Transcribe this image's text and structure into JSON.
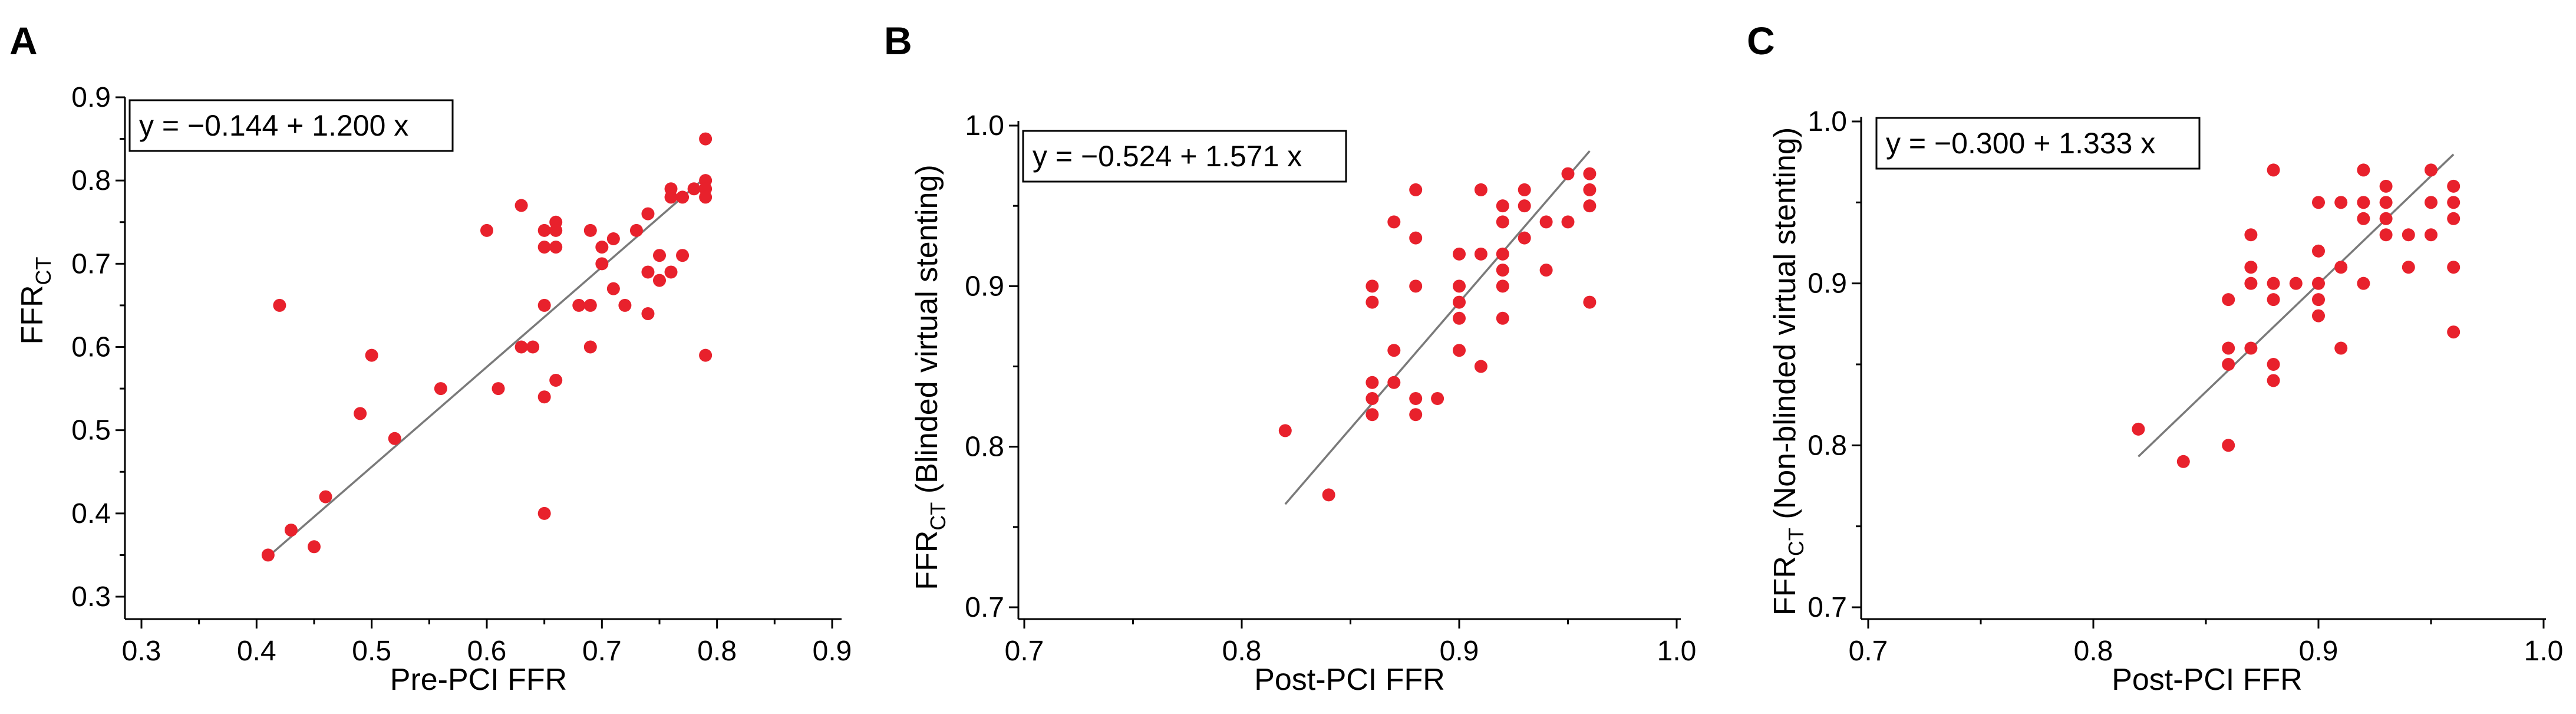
{
  "chart_data": [
    {
      "type": "scatter",
      "panel": "A",
      "equation": "y = −0.144 + 1.200 x",
      "xlabel": "Pre-PCI FFR",
      "ylabel_main": "FFR",
      "ylabel_sub": "CT",
      "ylabel_rest": "",
      "xlim": [
        0.3,
        0.9
      ],
      "ylim": [
        0.3,
        0.9
      ],
      "xticks": [
        "0.3",
        "0.4",
        "0.5",
        "0.6",
        "0.7",
        "0.8",
        "0.9"
      ],
      "yticks": [
        "0.3",
        "0.4",
        "0.5",
        "0.6",
        "0.7",
        "0.8",
        "0.9"
      ],
      "fit": {
        "intercept": -0.144,
        "slope": 1.2,
        "x_range": [
          0.41,
          0.785
        ]
      },
      "points": [
        [
          0.41,
          0.35
        ],
        [
          0.42,
          0.65
        ],
        [
          0.43,
          0.38
        ],
        [
          0.45,
          0.36
        ],
        [
          0.46,
          0.42
        ],
        [
          0.49,
          0.52
        ],
        [
          0.5,
          0.59
        ],
        [
          0.52,
          0.49
        ],
        [
          0.56,
          0.55
        ],
        [
          0.6,
          0.74
        ],
        [
          0.61,
          0.55
        ],
        [
          0.63,
          0.77
        ],
        [
          0.63,
          0.6
        ],
        [
          0.64,
          0.6
        ],
        [
          0.65,
          0.74
        ],
        [
          0.65,
          0.72
        ],
        [
          0.65,
          0.65
        ],
        [
          0.65,
          0.54
        ],
        [
          0.65,
          0.4
        ],
        [
          0.66,
          0.75
        ],
        [
          0.66,
          0.74
        ],
        [
          0.66,
          0.72
        ],
        [
          0.66,
          0.56
        ],
        [
          0.68,
          0.65
        ],
        [
          0.69,
          0.74
        ],
        [
          0.69,
          0.65
        ],
        [
          0.69,
          0.6
        ],
        [
          0.7,
          0.72
        ],
        [
          0.7,
          0.7
        ],
        [
          0.71,
          0.73
        ],
        [
          0.71,
          0.67
        ],
        [
          0.72,
          0.65
        ],
        [
          0.73,
          0.74
        ],
        [
          0.74,
          0.76
        ],
        [
          0.74,
          0.69
        ],
        [
          0.74,
          0.64
        ],
        [
          0.75,
          0.71
        ],
        [
          0.75,
          0.68
        ],
        [
          0.76,
          0.79
        ],
        [
          0.76,
          0.78
        ],
        [
          0.76,
          0.69
        ],
        [
          0.77,
          0.78
        ],
        [
          0.77,
          0.71
        ],
        [
          0.78,
          0.79
        ],
        [
          0.79,
          0.85
        ],
        [
          0.79,
          0.8
        ],
        [
          0.79,
          0.79
        ],
        [
          0.79,
          0.78
        ],
        [
          0.79,
          0.59
        ]
      ]
    },
    {
      "type": "scatter",
      "panel": "B",
      "equation": "y = −0.524 + 1.571 x",
      "xlabel": "Post-PCI FFR",
      "ylabel_main": "FFR",
      "ylabel_sub": "CT",
      "ylabel_rest": " (Blinded virtual stenting)",
      "xlim": [
        0.7,
        1.0
      ],
      "ylim": [
        0.7,
        1.0
      ],
      "xticks": [
        "0.7",
        "0.8",
        "0.9",
        "1.0"
      ],
      "yticks": [
        "0.7",
        "0.8",
        "0.9",
        "1.0"
      ],
      "fit": {
        "intercept": -0.524,
        "slope": 1.571,
        "x_range": [
          0.82,
          0.96
        ]
      },
      "points": [
        [
          0.82,
          0.81
        ],
        [
          0.84,
          0.77
        ],
        [
          0.86,
          0.9
        ],
        [
          0.86,
          0.89
        ],
        [
          0.86,
          0.84
        ],
        [
          0.86,
          0.83
        ],
        [
          0.86,
          0.82
        ],
        [
          0.87,
          0.94
        ],
        [
          0.87,
          0.86
        ],
        [
          0.87,
          0.84
        ],
        [
          0.88,
          0.96
        ],
        [
          0.88,
          0.93
        ],
        [
          0.88,
          0.9
        ],
        [
          0.88,
          0.83
        ],
        [
          0.88,
          0.82
        ],
        [
          0.89,
          0.83
        ],
        [
          0.9,
          0.92
        ],
        [
          0.9,
          0.9
        ],
        [
          0.9,
          0.89
        ],
        [
          0.9,
          0.88
        ],
        [
          0.9,
          0.86
        ],
        [
          0.91,
          0.96
        ],
        [
          0.91,
          0.92
        ],
        [
          0.91,
          0.85
        ],
        [
          0.92,
          0.95
        ],
        [
          0.92,
          0.94
        ],
        [
          0.92,
          0.92
        ],
        [
          0.92,
          0.91
        ],
        [
          0.92,
          0.9
        ],
        [
          0.92,
          0.88
        ],
        [
          0.93,
          0.96
        ],
        [
          0.93,
          0.95
        ],
        [
          0.93,
          0.93
        ],
        [
          0.94,
          0.94
        ],
        [
          0.94,
          0.91
        ],
        [
          0.95,
          0.97
        ],
        [
          0.95,
          0.94
        ],
        [
          0.96,
          0.97
        ],
        [
          0.96,
          0.96
        ],
        [
          0.96,
          0.95
        ],
        [
          0.96,
          0.89
        ]
      ]
    },
    {
      "type": "scatter",
      "panel": "C",
      "equation": "y = −0.300 + 1.333 x",
      "xlabel": "Post-PCI FFR",
      "ylabel_main": "FFR",
      "ylabel_sub": "CT",
      "ylabel_rest": " (Non-blinded virtual stenting)",
      "xlim": [
        0.7,
        1.0
      ],
      "ylim": [
        0.7,
        1.0
      ],
      "xticks": [
        "0.7",
        "0.8",
        "0.9",
        "1.0"
      ],
      "yticks": [
        "0.7",
        "0.8",
        "0.9",
        "1.0"
      ],
      "fit": {
        "intercept": -0.3,
        "slope": 1.333,
        "x_range": [
          0.82,
          0.96
        ]
      },
      "points": [
        [
          0.82,
          0.81
        ],
        [
          0.84,
          0.79
        ],
        [
          0.86,
          0.89
        ],
        [
          0.86,
          0.86
        ],
        [
          0.86,
          0.85
        ],
        [
          0.86,
          0.8
        ],
        [
          0.87,
          0.93
        ],
        [
          0.87,
          0.91
        ],
        [
          0.87,
          0.9
        ],
        [
          0.87,
          0.86
        ],
        [
          0.88,
          0.97
        ],
        [
          0.88,
          0.9
        ],
        [
          0.88,
          0.89
        ],
        [
          0.88,
          0.85
        ],
        [
          0.88,
          0.84
        ],
        [
          0.89,
          0.9
        ],
        [
          0.9,
          0.95
        ],
        [
          0.9,
          0.92
        ],
        [
          0.9,
          0.9
        ],
        [
          0.9,
          0.89
        ],
        [
          0.9,
          0.88
        ],
        [
          0.91,
          0.95
        ],
        [
          0.91,
          0.91
        ],
        [
          0.91,
          0.86
        ],
        [
          0.92,
          0.97
        ],
        [
          0.92,
          0.95
        ],
        [
          0.92,
          0.94
        ],
        [
          0.92,
          0.9
        ],
        [
          0.93,
          0.96
        ],
        [
          0.93,
          0.95
        ],
        [
          0.93,
          0.94
        ],
        [
          0.93,
          0.93
        ],
        [
          0.94,
          0.93
        ],
        [
          0.94,
          0.91
        ],
        [
          0.95,
          0.97
        ],
        [
          0.95,
          0.95
        ],
        [
          0.95,
          0.93
        ],
        [
          0.96,
          0.96
        ],
        [
          0.96,
          0.95
        ],
        [
          0.96,
          0.94
        ],
        [
          0.96,
          0.91
        ],
        [
          0.96,
          0.87
        ]
      ]
    }
  ]
}
